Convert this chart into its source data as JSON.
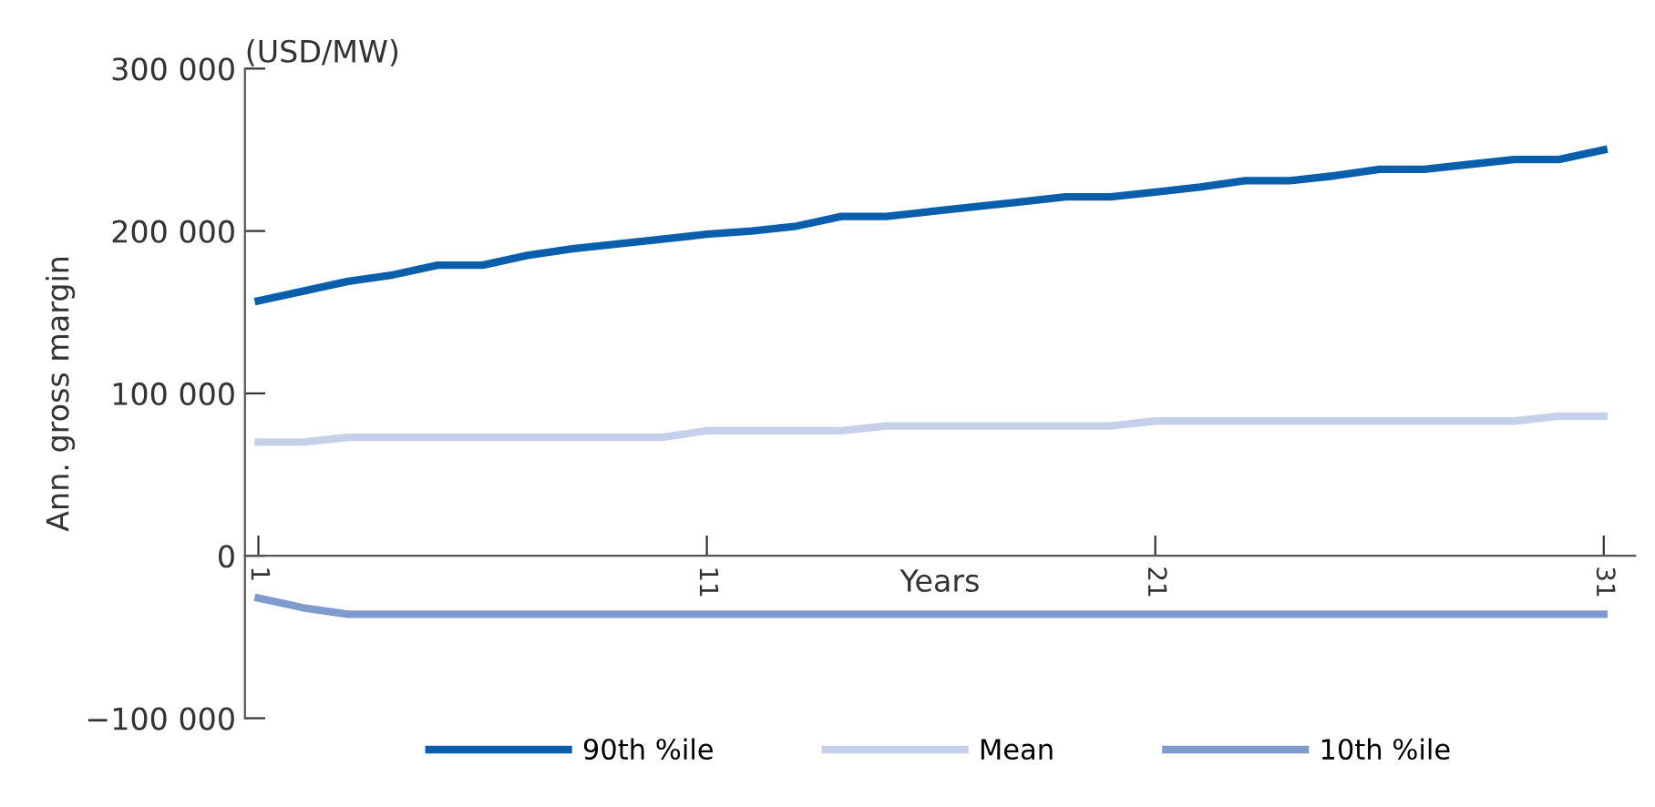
{
  "chart_data": {
    "type": "line",
    "xlabel": "Years",
    "ylabel": "Ann. gross margin",
    "annotations": [
      "(USD/MW)"
    ],
    "x": [
      1,
      2,
      3,
      4,
      5,
      6,
      7,
      8,
      9,
      10,
      11,
      12,
      13,
      14,
      15,
      16,
      17,
      18,
      19,
      20,
      21,
      22,
      23,
      24,
      25,
      26,
      27,
      28,
      29,
      30,
      31
    ],
    "series": [
      {
        "name": "90th %ile",
        "color": "#0a5fad",
        "values": [
          157000,
          163000,
          169000,
          173000,
          179000,
          179000,
          185000,
          189000,
          192000,
          195000,
          198000,
          200000,
          203000,
          209000,
          209000,
          212000,
          215000,
          218000,
          221000,
          221000,
          224000,
          227000,
          231000,
          231000,
          234000,
          238000,
          238000,
          241000,
          244000,
          244000,
          250000
        ]
      },
      {
        "name": "Mean",
        "color": "#c5d1ea",
        "values": [
          70000,
          70000,
          73000,
          73000,
          73000,
          73000,
          73000,
          73000,
          73000,
          73000,
          77000,
          77000,
          77000,
          77000,
          80000,
          80000,
          80000,
          80000,
          80000,
          80000,
          83000,
          83000,
          83000,
          83000,
          83000,
          83000,
          83000,
          83000,
          83000,
          86000,
          86000
        ]
      },
      {
        "name": "10th %ile",
        "color": "#7f9bcd",
        "values": [
          -26000,
          -32000,
          -36000,
          -36000,
          -36000,
          -36000,
          -36000,
          -36000,
          -36000,
          -36000,
          -36000,
          -36000,
          -36000,
          -36000,
          -36000,
          -36000,
          -36000,
          -36000,
          -36000,
          -36000,
          -36000,
          -36000,
          -36000,
          -36000,
          -36000,
          -36000,
          -36000,
          -36000,
          -36000,
          -36000,
          -36000
        ]
      }
    ],
    "xlim": [
      0.7,
      31.7
    ],
    "xticks": [
      1,
      11,
      21,
      31
    ],
    "ylim": [
      -100000,
      300000
    ],
    "yticks": [
      {
        "value": -100000,
        "label": "−100 000"
      },
      {
        "value": 0,
        "label": "0"
      },
      {
        "value": 100000,
        "label": "100 000"
      },
      {
        "value": 200000,
        "label": "200 000"
      },
      {
        "value": 300000,
        "label": "300 000"
      }
    ],
    "grid": false,
    "legend": "bottom",
    "marker": "none",
    "line_style": "solid"
  }
}
